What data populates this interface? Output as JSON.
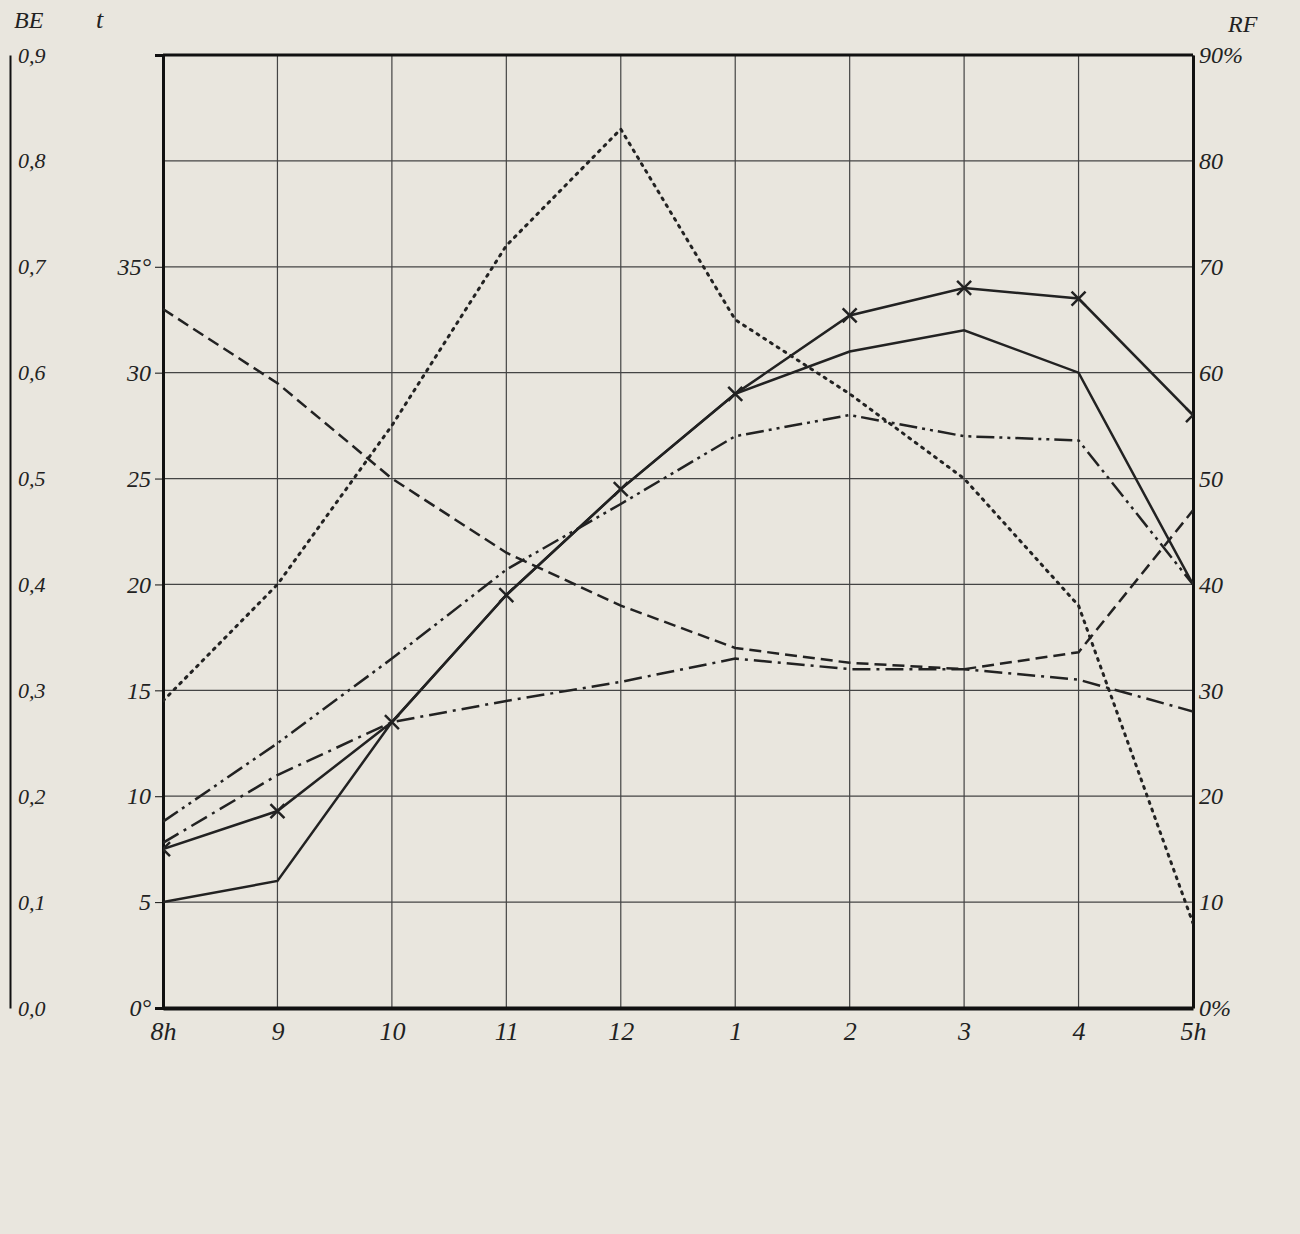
{
  "chart_data": {
    "type": "line",
    "ylabel": "t",
    "y2label": "RF",
    "y3label": "BE",
    "categories": [
      "8h",
      "9",
      "10",
      "11",
      "12",
      "1",
      "2",
      "3",
      "4",
      "5h"
    ],
    "ylim": [
      0,
      45
    ],
    "yticks": [
      {
        "value": 0,
        "label": "0°"
      },
      5,
      10,
      15,
      20,
      25,
      30,
      {
        "value": 35,
        "label": "35°"
      }
    ],
    "y2lim": [
      0,
      90
    ],
    "y2ticks": [
      {
        "value": 0,
        "label": "0%"
      },
      10,
      20,
      30,
      40,
      50,
      60,
      70,
      80,
      {
        "value": 90,
        "label": "90%"
      }
    ],
    "y3lim": [
      0,
      0.9
    ],
    "y3ticks": [
      {
        "value": 0,
        "label": "0,0"
      },
      {
        "value": 0.1,
        "label": "0,1"
      },
      {
        "value": 0.2,
        "label": "0,2"
      },
      {
        "value": 0.3,
        "label": "0,3"
      },
      {
        "value": 0.4,
        "label": "0,4"
      },
      {
        "value": 0.5,
        "label": "0,5"
      },
      {
        "value": 0.6,
        "label": "0,6"
      },
      {
        "value": 0.7,
        "label": "0,7"
      },
      {
        "value": 0.8,
        "label": "0,8"
      },
      {
        "value": 0.9,
        "label": "0,9"
      }
    ],
    "grid": true,
    "series": [
      {
        "color": "#222222",
        "line_style": "dotted",
        "values": [
          14.5,
          20,
          27.5,
          36,
          41.5,
          32.5,
          29,
          25,
          19,
          4
        ]
      },
      {
        "color": "#222222",
        "line_style": "dashed",
        "values": [
          33,
          29.5,
          25,
          21.5,
          19,
          17,
          16.3,
          16,
          16.8,
          23.5
        ]
      },
      {
        "color": "#222222",
        "line_style": "solid",
        "values": [
          5,
          6,
          13.5,
          19.5,
          24.5,
          29,
          31,
          32,
          30,
          20
        ]
      },
      {
        "color": "#222222",
        "line_style": "solid",
        "marker": "x",
        "values": [
          7.5,
          9.3,
          13.5,
          19.5,
          24.5,
          29,
          32.7,
          34,
          33.5,
          28
        ]
      },
      {
        "color": "#222222",
        "line_style": "dashdotdot",
        "values": [
          8.8,
          12.5,
          16.5,
          20.7,
          23.8,
          27,
          28,
          27,
          26.8,
          20
        ]
      },
      {
        "color": "#222222",
        "line_style": "dashdot",
        "values": [
          7.8,
          11,
          13.5,
          14.5,
          15.4,
          16.5,
          16,
          16,
          15.5,
          14
        ]
      }
    ]
  }
}
